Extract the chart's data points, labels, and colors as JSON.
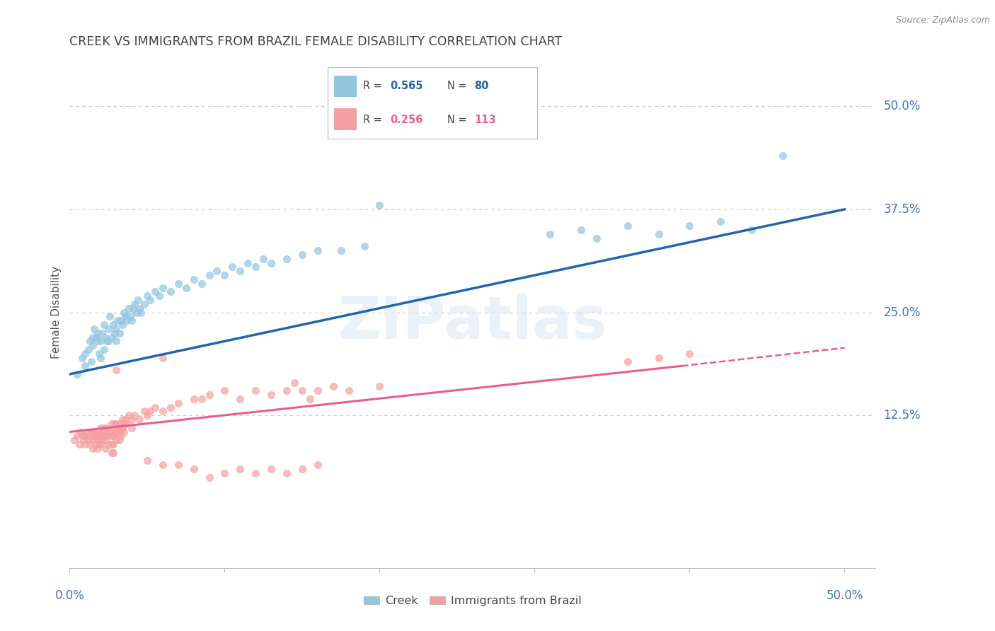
{
  "title": "CREEK VS IMMIGRANTS FROM BRAZIL FEMALE DISABILITY CORRELATION CHART",
  "source": "Source: ZipAtlas.com",
  "ylabel": "Female Disability",
  "ytick_labels": [
    "12.5%",
    "25.0%",
    "37.5%",
    "50.0%"
  ],
  "ytick_values": [
    0.125,
    0.25,
    0.375,
    0.5
  ],
  "xlim": [
    0.0,
    0.52
  ],
  "ylim": [
    -0.06,
    0.56
  ],
  "creek_color": "#92c5de",
  "brazil_color": "#f4a0a0",
  "creek_line_color": "#2166ac",
  "brazil_line_color": "#e8608a",
  "background_color": "#ffffff",
  "grid_color": "#cccccc",
  "axis_label_color": "#4472c4",
  "title_color": "#404040",
  "watermark": "ZIPatlas",
  "creek_line": [
    [
      0.0,
      0.175
    ],
    [
      0.5,
      0.375
    ]
  ],
  "brazil_line_solid": [
    [
      0.0,
      0.105
    ],
    [
      0.395,
      0.185
    ]
  ],
  "brazil_line_dash": [
    [
      0.395,
      0.185
    ],
    [
      0.5,
      0.207
    ]
  ],
  "creek_scatter": [
    [
      0.005,
      0.175
    ],
    [
      0.008,
      0.195
    ],
    [
      0.01,
      0.185
    ],
    [
      0.01,
      0.2
    ],
    [
      0.012,
      0.205
    ],
    [
      0.013,
      0.215
    ],
    [
      0.014,
      0.19
    ],
    [
      0.015,
      0.22
    ],
    [
      0.015,
      0.21
    ],
    [
      0.016,
      0.23
    ],
    [
      0.017,
      0.22
    ],
    [
      0.018,
      0.215
    ],
    [
      0.018,
      0.225
    ],
    [
      0.019,
      0.2
    ],
    [
      0.02,
      0.195
    ],
    [
      0.02,
      0.215
    ],
    [
      0.021,
      0.225
    ],
    [
      0.022,
      0.205
    ],
    [
      0.022,
      0.235
    ],
    [
      0.023,
      0.22
    ],
    [
      0.024,
      0.215
    ],
    [
      0.025,
      0.23
    ],
    [
      0.025,
      0.215
    ],
    [
      0.026,
      0.245
    ],
    [
      0.027,
      0.22
    ],
    [
      0.028,
      0.235
    ],
    [
      0.029,
      0.225
    ],
    [
      0.03,
      0.23
    ],
    [
      0.03,
      0.215
    ],
    [
      0.031,
      0.24
    ],
    [
      0.032,
      0.225
    ],
    [
      0.033,
      0.24
    ],
    [
      0.034,
      0.235
    ],
    [
      0.035,
      0.25
    ],
    [
      0.036,
      0.245
    ],
    [
      0.037,
      0.24
    ],
    [
      0.038,
      0.255
    ],
    [
      0.039,
      0.245
    ],
    [
      0.04,
      0.24
    ],
    [
      0.041,
      0.255
    ],
    [
      0.042,
      0.26
    ],
    [
      0.043,
      0.25
    ],
    [
      0.044,
      0.265
    ],
    [
      0.045,
      0.255
    ],
    [
      0.046,
      0.25
    ],
    [
      0.048,
      0.26
    ],
    [
      0.05,
      0.27
    ],
    [
      0.052,
      0.265
    ],
    [
      0.055,
      0.275
    ],
    [
      0.058,
      0.27
    ],
    [
      0.06,
      0.28
    ],
    [
      0.065,
      0.275
    ],
    [
      0.07,
      0.285
    ],
    [
      0.075,
      0.28
    ],
    [
      0.08,
      0.29
    ],
    [
      0.085,
      0.285
    ],
    [
      0.09,
      0.295
    ],
    [
      0.095,
      0.3
    ],
    [
      0.1,
      0.295
    ],
    [
      0.105,
      0.305
    ],
    [
      0.11,
      0.3
    ],
    [
      0.115,
      0.31
    ],
    [
      0.12,
      0.305
    ],
    [
      0.125,
      0.315
    ],
    [
      0.13,
      0.31
    ],
    [
      0.14,
      0.315
    ],
    [
      0.15,
      0.32
    ],
    [
      0.16,
      0.325
    ],
    [
      0.175,
      0.325
    ],
    [
      0.19,
      0.33
    ],
    [
      0.31,
      0.345
    ],
    [
      0.33,
      0.35
    ],
    [
      0.34,
      0.34
    ],
    [
      0.36,
      0.355
    ],
    [
      0.38,
      0.345
    ],
    [
      0.4,
      0.355
    ],
    [
      0.42,
      0.36
    ],
    [
      0.44,
      0.35
    ],
    [
      0.46,
      0.44
    ],
    [
      0.2,
      0.38
    ]
  ],
  "brazil_scatter": [
    [
      0.003,
      0.095
    ],
    [
      0.005,
      0.1
    ],
    [
      0.006,
      0.09
    ],
    [
      0.007,
      0.105
    ],
    [
      0.008,
      0.1
    ],
    [
      0.009,
      0.095
    ],
    [
      0.01,
      0.1
    ],
    [
      0.01,
      0.09
    ],
    [
      0.011,
      0.105
    ],
    [
      0.012,
      0.095
    ],
    [
      0.013,
      0.1
    ],
    [
      0.013,
      0.09
    ],
    [
      0.014,
      0.105
    ],
    [
      0.015,
      0.1
    ],
    [
      0.015,
      0.095
    ],
    [
      0.015,
      0.085
    ],
    [
      0.016,
      0.105
    ],
    [
      0.017,
      0.1
    ],
    [
      0.017,
      0.09
    ],
    [
      0.018,
      0.105
    ],
    [
      0.018,
      0.095
    ],
    [
      0.018,
      0.085
    ],
    [
      0.019,
      0.1
    ],
    [
      0.019,
      0.09
    ],
    [
      0.02,
      0.11
    ],
    [
      0.02,
      0.1
    ],
    [
      0.02,
      0.09
    ],
    [
      0.021,
      0.105
    ],
    [
      0.021,
      0.095
    ],
    [
      0.022,
      0.11
    ],
    [
      0.022,
      0.1
    ],
    [
      0.023,
      0.105
    ],
    [
      0.023,
      0.095
    ],
    [
      0.023,
      0.085
    ],
    [
      0.024,
      0.11
    ],
    [
      0.025,
      0.1
    ],
    [
      0.025,
      0.09
    ],
    [
      0.026,
      0.105
    ],
    [
      0.027,
      0.115
    ],
    [
      0.027,
      0.1
    ],
    [
      0.027,
      0.09
    ],
    [
      0.027,
      0.08
    ],
    [
      0.028,
      0.11
    ],
    [
      0.028,
      0.1
    ],
    [
      0.028,
      0.09
    ],
    [
      0.028,
      0.08
    ],
    [
      0.029,
      0.115
    ],
    [
      0.029,
      0.105
    ],
    [
      0.03,
      0.115
    ],
    [
      0.03,
      0.105
    ],
    [
      0.03,
      0.095
    ],
    [
      0.031,
      0.11
    ],
    [
      0.032,
      0.115
    ],
    [
      0.032,
      0.105
    ],
    [
      0.032,
      0.095
    ],
    [
      0.033,
      0.11
    ],
    [
      0.033,
      0.1
    ],
    [
      0.034,
      0.12
    ],
    [
      0.034,
      0.11
    ],
    [
      0.035,
      0.115
    ],
    [
      0.035,
      0.105
    ],
    [
      0.036,
      0.12
    ],
    [
      0.037,
      0.115
    ],
    [
      0.038,
      0.125
    ],
    [
      0.04,
      0.12
    ],
    [
      0.04,
      0.11
    ],
    [
      0.042,
      0.125
    ],
    [
      0.045,
      0.12
    ],
    [
      0.048,
      0.13
    ],
    [
      0.05,
      0.125
    ],
    [
      0.052,
      0.13
    ],
    [
      0.055,
      0.135
    ],
    [
      0.06,
      0.13
    ],
    [
      0.065,
      0.135
    ],
    [
      0.07,
      0.14
    ],
    [
      0.08,
      0.145
    ],
    [
      0.085,
      0.145
    ],
    [
      0.09,
      0.15
    ],
    [
      0.03,
      0.18
    ],
    [
      0.06,
      0.195
    ],
    [
      0.1,
      0.155
    ],
    [
      0.11,
      0.145
    ],
    [
      0.12,
      0.155
    ],
    [
      0.13,
      0.15
    ],
    [
      0.14,
      0.155
    ],
    [
      0.145,
      0.165
    ],
    [
      0.15,
      0.155
    ],
    [
      0.155,
      0.145
    ],
    [
      0.16,
      0.155
    ],
    [
      0.17,
      0.16
    ],
    [
      0.18,
      0.155
    ],
    [
      0.2,
      0.16
    ],
    [
      0.05,
      0.07
    ],
    [
      0.06,
      0.065
    ],
    [
      0.07,
      0.065
    ],
    [
      0.08,
      0.06
    ],
    [
      0.09,
      0.05
    ],
    [
      0.1,
      0.055
    ],
    [
      0.11,
      0.06
    ],
    [
      0.12,
      0.055
    ],
    [
      0.13,
      0.06
    ],
    [
      0.14,
      0.055
    ],
    [
      0.15,
      0.06
    ],
    [
      0.16,
      0.065
    ],
    [
      0.36,
      0.19
    ],
    [
      0.38,
      0.195
    ],
    [
      0.4,
      0.2
    ]
  ]
}
